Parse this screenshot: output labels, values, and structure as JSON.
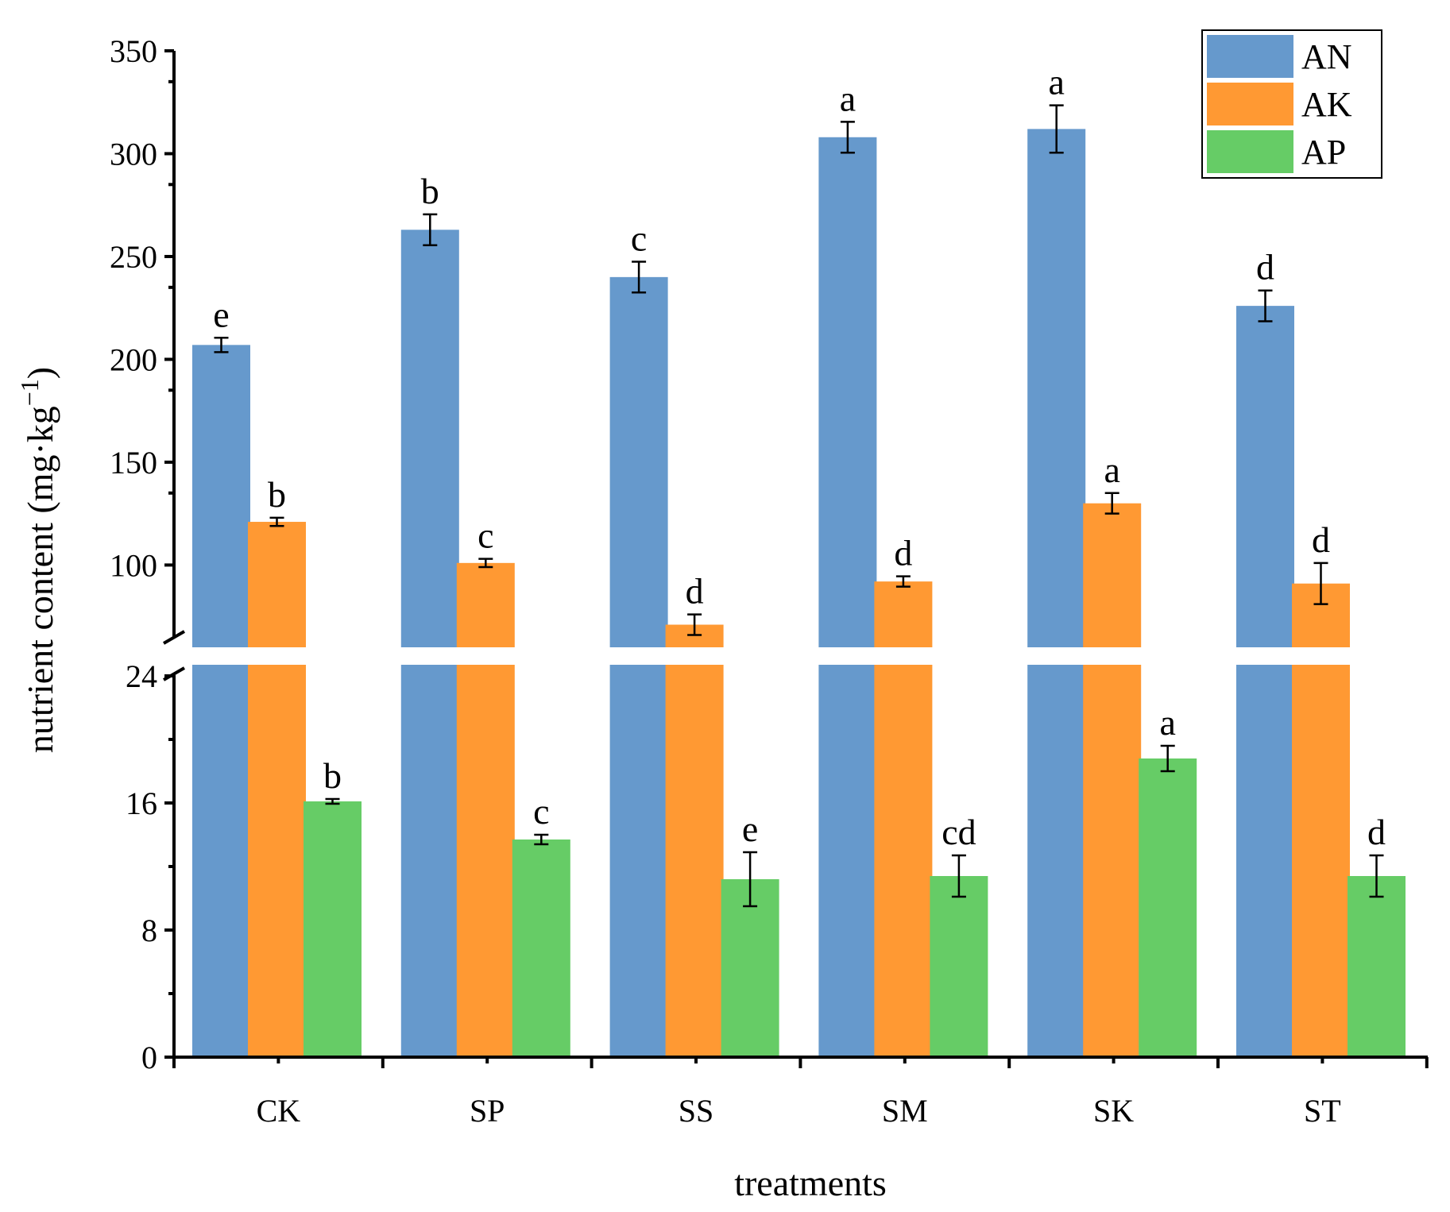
{
  "chart_data": {
    "type": "bar",
    "title": "",
    "xlabel": "treatments",
    "ylabel": "nutrient content (mg·kg",
    "ylabel_superscript": "−1",
    "ylabel_close": ")",
    "categories": [
      "CK",
      "SP",
      "SS",
      "SM",
      "SK",
      "ST"
    ],
    "series": [
      {
        "name": "AN",
        "color": "#6699CC",
        "values": [
          207,
          263,
          240,
          308,
          312,
          226
        ],
        "errors": [
          3.5,
          7.5,
          7.5,
          7.5,
          11.5,
          7.5
        ],
        "letters": [
          "e",
          "b",
          "c",
          "a",
          "a",
          "d"
        ]
      },
      {
        "name": "AK",
        "color": "#FF9933",
        "values": [
          121,
          101,
          71,
          92,
          130,
          91
        ],
        "errors": [
          2,
          2,
          5,
          2.5,
          5,
          10
        ],
        "letters": [
          "b",
          "c",
          "d",
          "d",
          "a",
          "d"
        ]
      },
      {
        "name": "AP",
        "color": "#66CC66",
        "values": [
          16.1,
          13.7,
          11.2,
          11.4,
          18.8,
          11.4
        ],
        "errors": [
          0.15,
          0.3,
          1.7,
          1.3,
          0.8,
          1.3
        ],
        "letters": [
          "b",
          "c",
          "e",
          "cd",
          "a",
          "d"
        ]
      }
    ],
    "y_lower": {
      "range": [
        0,
        25
      ],
      "ticks": [
        0,
        8,
        16,
        24
      ]
    },
    "y_upper": {
      "range": [
        60,
        350
      ],
      "ticks": [
        100,
        150,
        200,
        250,
        300,
        350
      ]
    },
    "axis_break": true,
    "legend_position": "top-right"
  }
}
